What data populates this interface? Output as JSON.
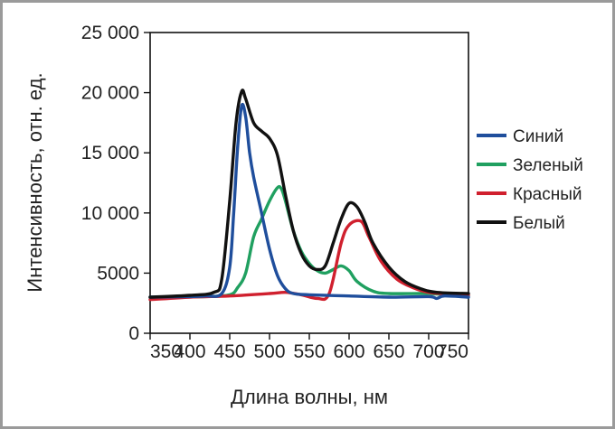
{
  "chart_data": {
    "type": "line",
    "title": "",
    "xlabel": "Длина волны, нм",
    "ylabel": "Интенсивность, отн. ед.",
    "xlim": [
      350,
      750
    ],
    "ylim": [
      0,
      25000
    ],
    "x_ticks": [
      350,
      400,
      450,
      500,
      550,
      600,
      650,
      700,
      750
    ],
    "x_tick_labels": [
      "350",
      "400",
      "450",
      "500",
      "550",
      "600",
      "650",
      "700",
      "750"
    ],
    "y_ticks": [
      0,
      5000,
      10000,
      15000,
      20000,
      25000
    ],
    "y_tick_labels": [
      "0",
      "5000",
      "10 000",
      "15 000",
      "20 000",
      "25 000"
    ],
    "grid": false,
    "legend_position": "right",
    "series": [
      {
        "name": "Синий",
        "color": "#1f4e9c",
        "points": [
          [
            350,
            3000
          ],
          [
            400,
            3050
          ],
          [
            420,
            3100
          ],
          [
            440,
            3300
          ],
          [
            450,
            5500
          ],
          [
            455,
            10000
          ],
          [
            460,
            15500
          ],
          [
            465,
            18900
          ],
          [
            470,
            18000
          ],
          [
            475,
            15000
          ],
          [
            480,
            13000
          ],
          [
            490,
            10000
          ],
          [
            500,
            7000
          ],
          [
            510,
            4800
          ],
          [
            520,
            3700
          ],
          [
            530,
            3300
          ],
          [
            550,
            3200
          ],
          [
            600,
            3100
          ],
          [
            650,
            3000
          ],
          [
            700,
            3050
          ],
          [
            710,
            2900
          ],
          [
            720,
            3100
          ],
          [
            750,
            3000
          ]
        ]
      },
      {
        "name": "Зеленый",
        "color": "#20a060",
        "points": [
          [
            350,
            3000
          ],
          [
            420,
            3050
          ],
          [
            450,
            3200
          ],
          [
            460,
            3800
          ],
          [
            470,
            5000
          ],
          [
            480,
            8000
          ],
          [
            490,
            9500
          ],
          [
            500,
            11000
          ],
          [
            510,
            12100
          ],
          [
            515,
            12000
          ],
          [
            520,
            11000
          ],
          [
            530,
            8500
          ],
          [
            540,
            6800
          ],
          [
            550,
            5800
          ],
          [
            560,
            5200
          ],
          [
            570,
            5000
          ],
          [
            580,
            5300
          ],
          [
            590,
            5600
          ],
          [
            600,
            5200
          ],
          [
            610,
            4300
          ],
          [
            630,
            3500
          ],
          [
            650,
            3300
          ],
          [
            700,
            3300
          ],
          [
            750,
            3100
          ]
        ]
      },
      {
        "name": "Красный",
        "color": "#d0202e",
        "points": [
          [
            350,
            2800
          ],
          [
            400,
            3000
          ],
          [
            450,
            3100
          ],
          [
            500,
            3300
          ],
          [
            520,
            3400
          ],
          [
            540,
            3200
          ],
          [
            560,
            2900
          ],
          [
            575,
            3300
          ],
          [
            590,
            7500
          ],
          [
            600,
            9000
          ],
          [
            615,
            9300
          ],
          [
            625,
            8000
          ],
          [
            640,
            6000
          ],
          [
            660,
            4500
          ],
          [
            680,
            3800
          ],
          [
            700,
            3400
          ],
          [
            730,
            3250
          ],
          [
            750,
            3200
          ]
        ]
      },
      {
        "name": "Белый",
        "color": "#111111",
        "points": [
          [
            350,
            3000
          ],
          [
            400,
            3150
          ],
          [
            430,
            3400
          ],
          [
            440,
            4500
          ],
          [
            450,
            11000
          ],
          [
            458,
            17500
          ],
          [
            465,
            20100
          ],
          [
            470,
            19500
          ],
          [
            480,
            17500
          ],
          [
            490,
            16800
          ],
          [
            500,
            16200
          ],
          [
            510,
            14800
          ],
          [
            520,
            11500
          ],
          [
            530,
            8500
          ],
          [
            540,
            6600
          ],
          [
            550,
            5600
          ],
          [
            560,
            5300
          ],
          [
            570,
            5600
          ],
          [
            580,
            7500
          ],
          [
            590,
            9500
          ],
          [
            600,
            10800
          ],
          [
            610,
            10500
          ],
          [
            620,
            9200
          ],
          [
            630,
            7500
          ],
          [
            650,
            5500
          ],
          [
            670,
            4300
          ],
          [
            690,
            3700
          ],
          [
            710,
            3400
          ],
          [
            750,
            3300
          ]
        ]
      }
    ]
  }
}
